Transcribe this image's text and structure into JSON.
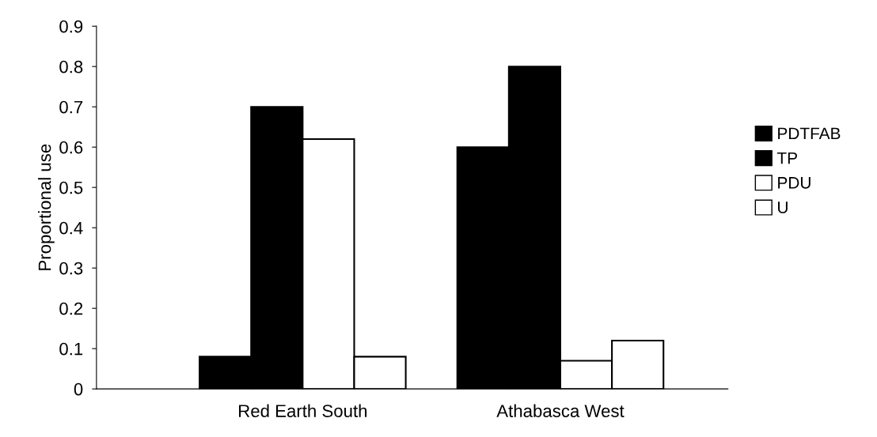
{
  "chart_data": {
    "type": "bar",
    "ylabel": "Proportional use",
    "categories": [
      "Red Earth South",
      "Athabasca West"
    ],
    "series": [
      {
        "name": "PDTFAB",
        "color": "#000000",
        "values": [
          0.08,
          0.6
        ]
      },
      {
        "name": "TP",
        "color": "#000000",
        "values": [
          0.7,
          0.8
        ]
      },
      {
        "name": "PDU",
        "color": "#ffffff",
        "values": [
          0.62,
          0.07
        ]
      },
      {
        "name": "U",
        "color": "#ffffff",
        "values": [
          0.08,
          0.12
        ]
      }
    ],
    "ylim": [
      0,
      0.9
    ],
    "yticks": [
      0,
      0.1,
      0.2,
      0.3,
      0.4,
      0.5,
      0.6,
      0.7,
      0.8,
      0.9
    ],
    "grid": false,
    "legend": "right"
  }
}
